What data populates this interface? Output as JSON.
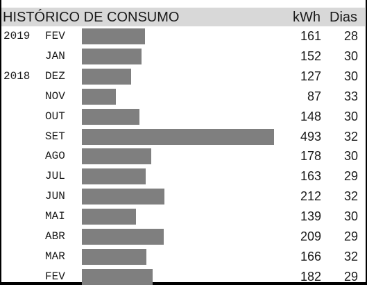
{
  "chart_data": {
    "type": "bar",
    "title": "HISTÓRICO DE CONSUMO",
    "columns": {
      "kwh_label": "kWh",
      "dias_label": "Dias"
    },
    "rows": [
      {
        "year": "2019",
        "month": "FEV",
        "kwh": 161,
        "dias": 28
      },
      {
        "year": "",
        "month": "JAN",
        "kwh": 152,
        "dias": 30
      },
      {
        "year": "2018",
        "month": "DEZ",
        "kwh": 127,
        "dias": 30
      },
      {
        "year": "",
        "month": "NOV",
        "kwh": 87,
        "dias": 33
      },
      {
        "year": "",
        "month": "OUT",
        "kwh": 148,
        "dias": 30
      },
      {
        "year": "",
        "month": "SET",
        "kwh": 493,
        "dias": 32
      },
      {
        "year": "",
        "month": "AGO",
        "kwh": 178,
        "dias": 30
      },
      {
        "year": "",
        "month": "JUL",
        "kwh": 163,
        "dias": 29
      },
      {
        "year": "",
        "month": "JUN",
        "kwh": 212,
        "dias": 32
      },
      {
        "year": "",
        "month": "MAI",
        "kwh": 139,
        "dias": 30
      },
      {
        "year": "",
        "month": "ABR",
        "kwh": 209,
        "dias": 29
      },
      {
        "year": "",
        "month": "MAR",
        "kwh": 166,
        "dias": 32
      },
      {
        "year": "",
        "month": "FEV",
        "kwh": 182,
        "dias": 29
      }
    ],
    "bar_color": "#7f7f7f",
    "header_color": "#d8d8d8"
  }
}
